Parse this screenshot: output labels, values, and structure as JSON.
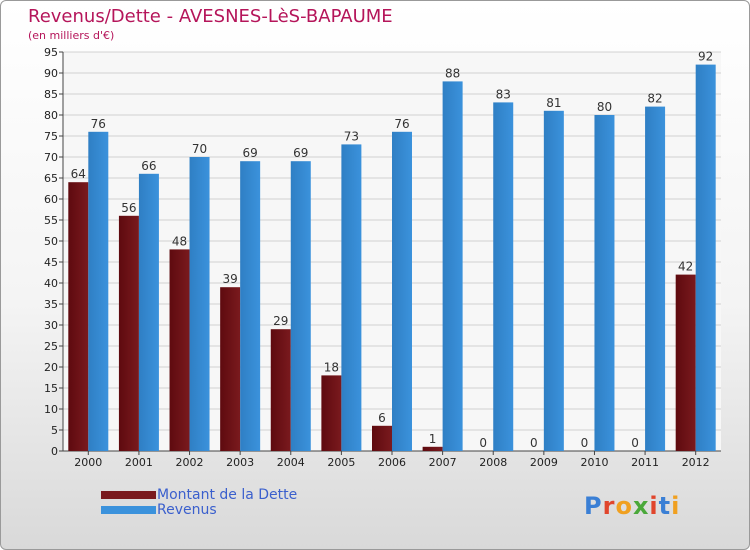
{
  "title": "Revenus/Dette - AVESNES-LèS-BAPAUME",
  "subtitle": "(en milliers d'€)",
  "colors": {
    "debt": "#7a1a1e",
    "revenue": "#3b92dc",
    "title": "#b5155a",
    "legend_text": "#3a5fcd"
  },
  "legend": {
    "debt_label": "Montant de la Dette",
    "revenue_label": "Revenus"
  },
  "logo_text": "Proxiti",
  "chart_data": {
    "type": "bar",
    "title": "Revenus/Dette - AVESNES-LèS-BAPAUME",
    "ylabel": "(en milliers d'€)",
    "xlabel": "",
    "categories": [
      "2000",
      "2001",
      "2002",
      "2003",
      "2004",
      "2005",
      "2006",
      "2007",
      "2008",
      "2009",
      "2010",
      "2011",
      "2012"
    ],
    "series": [
      {
        "name": "Montant de la Dette",
        "values": [
          64,
          56,
          48,
          39,
          29,
          18,
          6,
          1,
          0,
          0,
          0,
          0,
          42
        ]
      },
      {
        "name": "Revenus",
        "values": [
          76,
          66,
          70,
          69,
          69,
          73,
          76,
          88,
          83,
          81,
          80,
          82,
          92
        ]
      }
    ],
    "ylim": [
      0,
      95
    ],
    "yticks": [
      0,
      5,
      10,
      15,
      20,
      25,
      30,
      35,
      40,
      45,
      50,
      55,
      60,
      65,
      70,
      75,
      80,
      85,
      90,
      95
    ],
    "grid": true,
    "legend_position": "bottom-left"
  }
}
